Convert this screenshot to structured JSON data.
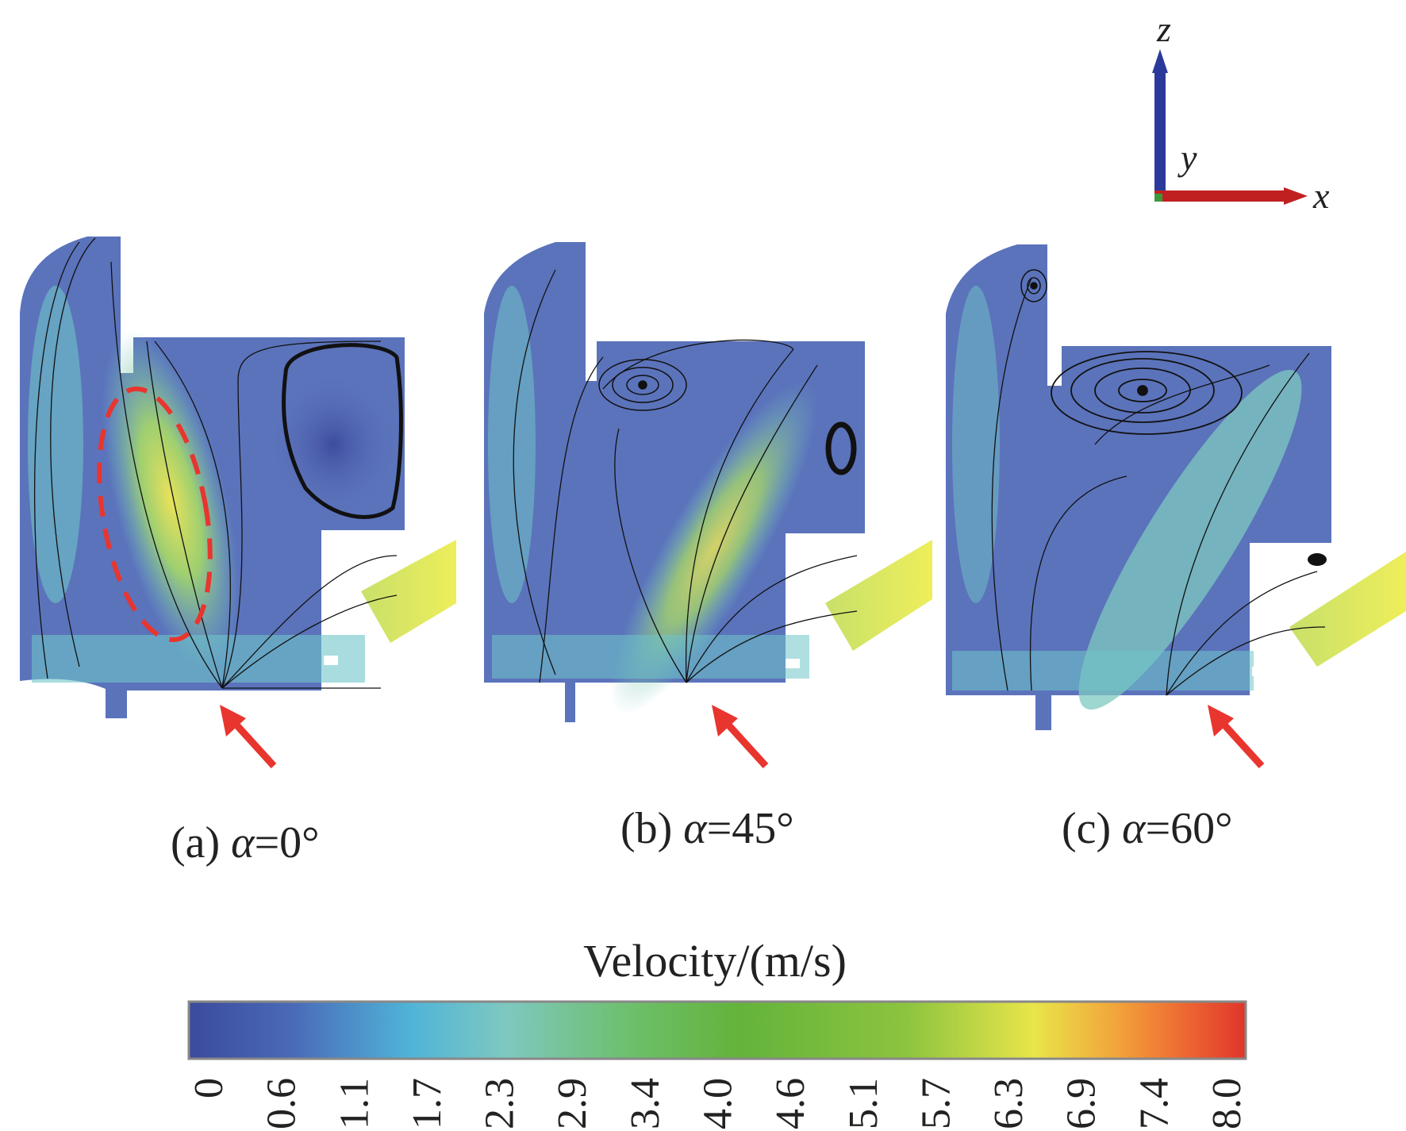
{
  "axes_triad": {
    "z_label": "z",
    "y_label": "y",
    "x_label": "x"
  },
  "panels": [
    {
      "id": "a",
      "caption": "(a) α=0°",
      "prefix": "(a) ",
      "alpha_symbol": "α",
      "value": "=0°"
    },
    {
      "id": "b",
      "caption": "(b) α=45°",
      "prefix": "(b) ",
      "alpha_symbol": "α",
      "value": "=45°"
    },
    {
      "id": "c",
      "caption": "(c) α=60°",
      "prefix": "(c) ",
      "alpha_symbol": "α",
      "value": "=60°"
    }
  ],
  "colorbar": {
    "title": "Velocity/(m/s)",
    "ticks": [
      "0",
      "0.6",
      "1.1",
      "1.7",
      "2.3",
      "2.9",
      "3.4",
      "4.0",
      "4.6",
      "5.1",
      "5.7",
      "6.3",
      "6.9",
      "7.4",
      "8.0"
    ],
    "range": [
      0,
      8.0
    ],
    "colors": [
      "#3b4a9c",
      "#4a6bb8",
      "#4fb4d8",
      "#7ec8c0",
      "#6dbf6a",
      "#63b33b",
      "#8dc43f",
      "#e9e54a",
      "#f2a23a",
      "#ee6a33",
      "#e0352b"
    ]
  },
  "colors": {
    "field_low": "#4a5fb0",
    "field_mid": "#6fc4c8",
    "field_high": "#e2e660",
    "highlight_ellipse": "#e8352e",
    "arrow": "#e8352e",
    "axis_z": "#2b3a9a",
    "axis_x": "#c02020",
    "streamline": "#111111"
  }
}
